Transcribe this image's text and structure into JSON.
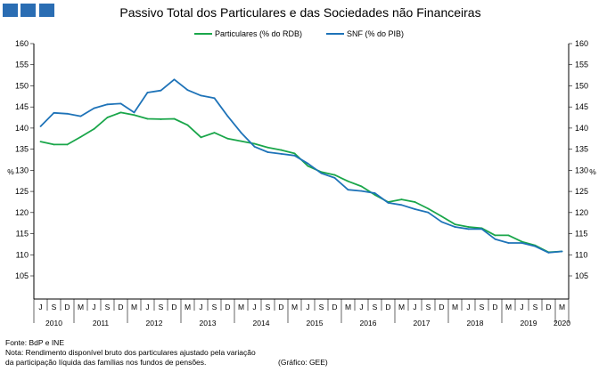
{
  "header": {
    "title": "Passivo Total dos Particulares e das Sociedades não Financeiras"
  },
  "chart_data": {
    "type": "line",
    "title": "Passivo Total dos Particulares e das Sociedades não Financeiras",
    "ylabel": "%",
    "ylim": [
      105,
      160
    ],
    "yticks": [
      105,
      110,
      115,
      120,
      125,
      130,
      135,
      140,
      145,
      150,
      155,
      160
    ],
    "grid": false,
    "legend_placement": "top-center",
    "x": [
      "J",
      "S",
      "D",
      "M",
      "J",
      "S",
      "D",
      "M",
      "J",
      "S",
      "D",
      "M",
      "J",
      "S",
      "D",
      "M",
      "J",
      "S",
      "D",
      "M",
      "J",
      "S",
      "D",
      "M",
      "J",
      "S",
      "D",
      "M",
      "J",
      "S",
      "D",
      "M",
      "J",
      "S",
      "D",
      "M",
      "J",
      "S",
      "D",
      "M"
    ],
    "year_labels": [
      {
        "label": "2010",
        "start": 0,
        "end": 2
      },
      {
        "label": "2011",
        "start": 3,
        "end": 6
      },
      {
        "label": "2012",
        "start": 7,
        "end": 10
      },
      {
        "label": "2013",
        "start": 11,
        "end": 14
      },
      {
        "label": "2014",
        "start": 15,
        "end": 18
      },
      {
        "label": "2015",
        "start": 19,
        "end": 22
      },
      {
        "label": "2016",
        "start": 23,
        "end": 26
      },
      {
        "label": "2017",
        "start": 27,
        "end": 30
      },
      {
        "label": "2018",
        "start": 31,
        "end": 34
      },
      {
        "label": "2019",
        "start": 35,
        "end": 38
      },
      {
        "label": "2020",
        "start": 39,
        "end": 39
      }
    ],
    "series": [
      {
        "name": "Particulares (% do RDB)",
        "color": "#1aa64a",
        "values": [
          136.8,
          136.1,
          136.1,
          137.9,
          139.8,
          142.5,
          143.7,
          143.1,
          142.2,
          142.1,
          142.2,
          140.7,
          137.8,
          138.9,
          137.5,
          136.9,
          136.3,
          135.4,
          134.8,
          134.0,
          131.0,
          129.6,
          128.9,
          127.4,
          126.2,
          124.2,
          122.5,
          123.1,
          122.5,
          120.9,
          119.1,
          117.2,
          116.6,
          116.3,
          114.6,
          114.6,
          113.1,
          112.2,
          110.6,
          110.8
        ]
      },
      {
        "name": "SNF (% do PIB)",
        "color": "#1e73b8",
        "values": [
          140.4,
          143.6,
          143.4,
          142.8,
          144.7,
          145.6,
          145.8,
          143.7,
          148.4,
          148.9,
          151.5,
          149.0,
          147.7,
          147.1,
          142.8,
          138.9,
          135.6,
          134.3,
          133.9,
          133.5,
          131.6,
          129.3,
          128.2,
          125.4,
          125.1,
          124.6,
          122.3,
          121.8,
          120.8,
          120.0,
          117.8,
          116.6,
          116.1,
          116.1,
          113.7,
          112.8,
          112.8,
          112.0,
          110.5,
          110.8
        ]
      }
    ]
  },
  "footnotes": {
    "source": "Fonte: BdP e INE",
    "note_line1": "Nota: Rendimento disponível bruto dos particulares ajustado pela variação",
    "note_line2": "da participação líquida das famílias nos fundos de pensões.",
    "credit": "(Gráfico: GEE)"
  },
  "colors": {
    "logo": "#2a6db3",
    "particulares": "#1aa64a",
    "snf": "#1e73b8"
  }
}
